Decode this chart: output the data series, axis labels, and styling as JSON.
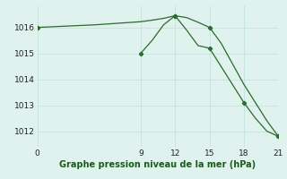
{
  "line1_x": [
    0,
    1,
    2,
    3,
    4,
    5,
    6,
    7,
    8,
    9,
    10,
    11,
    12,
    13,
    14,
    15,
    16,
    17,
    18,
    19,
    20,
    21
  ],
  "line1_y": [
    1016.0,
    1016.02,
    1016.04,
    1016.06,
    1016.08,
    1016.1,
    1016.13,
    1016.16,
    1016.19,
    1016.22,
    1016.28,
    1016.35,
    1016.45,
    1016.38,
    1016.2,
    1016.0,
    1015.4,
    1014.6,
    1013.8,
    1013.1,
    1012.4,
    1011.8
  ],
  "line2_x": [
    9,
    10,
    11,
    12,
    13,
    14,
    15,
    16,
    17,
    18,
    19,
    20,
    21
  ],
  "line2_y": [
    1015.0,
    1015.5,
    1016.1,
    1016.45,
    1015.9,
    1015.3,
    1015.2,
    1014.5,
    1013.8,
    1013.1,
    1012.5,
    1012.0,
    1011.8
  ],
  "line_color": "#2d6a2d",
  "bg_color": "#dff2ee",
  "xlabel": "Graphe pression niveau de la mer (hPa)",
  "xticks": [
    0,
    9,
    12,
    15,
    18,
    21
  ],
  "yticks": [
    1012,
    1013,
    1014,
    1015,
    1016
  ],
  "ylim": [
    1011.4,
    1016.85
  ],
  "xlim": [
    0,
    21
  ]
}
